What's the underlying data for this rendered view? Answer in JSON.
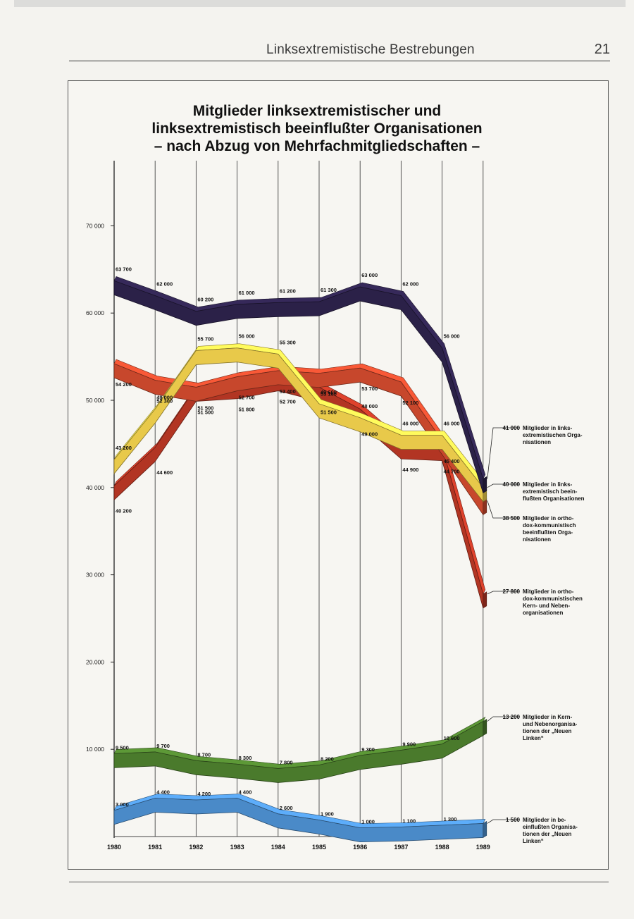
{
  "header": {
    "running_title": "Linksextremistische Bestrebungen",
    "page_number": "21"
  },
  "chart_data": {
    "type": "line",
    "title_lines": [
      "Mitglieder linksextremistischer und",
      "linksextremistisch beeinflußter Organisationen",
      "– nach Abzug von Mehrfachmitgliedschaften –"
    ],
    "x": [
      "1980",
      "1981",
      "1982",
      "1983",
      "1984",
      "1985",
      "1986",
      "1987",
      "1988",
      "1989"
    ],
    "y_ticks": [
      {
        "value": 10000,
        "label": "10 000"
      },
      {
        "value": 20000,
        "label": "20.000"
      },
      {
        "value": 30000,
        "label": "30 000"
      },
      {
        "value": 40000,
        "label": "40 000"
      },
      {
        "value": 50000,
        "label": "50 000"
      },
      {
        "value": 60000,
        "label": "60 000"
      },
      {
        "value": 70000,
        "label": "70 000"
      }
    ],
    "ylim": [
      0,
      75000
    ],
    "series": [
      {
        "name": "Mitglieder in linksextremistischen Organisationen",
        "color": "#2b2148",
        "values": [
          63700,
          62000,
          60200,
          61000,
          61200,
          61300,
          63000,
          62000,
          56000,
          41000
        ],
        "labels": [
          "63 700",
          "62 000",
          "60 200",
          "61 000",
          "61 200",
          "61 300",
          "63 000",
          "62 000",
          "56 000",
          "41 000"
        ],
        "legend_value": "41 000",
        "legend_lines": [
          "Mitglieder in links-",
          "extremistischen Orga-",
          "nisationen"
        ]
      },
      {
        "name": "Mitglieder in linksextremistisch beeinflußten Organisationen",
        "color": "#e8c94a",
        "values": [
          43200,
          49000,
          55700,
          56000,
          55300,
          49600,
          48000,
          46000,
          46000,
          40000
        ],
        "labels": [
          "43 200",
          "49 000",
          "55 700",
          "56 000",
          "55 300",
          "49 600",
          "48 000",
          "46 000",
          "46 000",
          "40 000"
        ],
        "legend_value": "40 000",
        "legend_lines": [
          "Mitglieder in links-",
          "extremistisch beein-",
          "flußten Organisationen"
        ]
      },
      {
        "name": "Mitglieder in orthodox-kommunistisch beeinflußten Organisationen",
        "color": "#c7472c",
        "values": [
          54200,
          52300,
          51500,
          52700,
          53400,
          53100,
          53700,
          52100,
          45400,
          38500
        ],
        "labels": [
          "54 200",
          "52 300",
          "51 500",
          "52 700",
          "53 400",
          "53 100",
          "53 700",
          "52 100",
          "45 400",
          "38 500"
        ],
        "legend_value": "38 500",
        "legend_lines": [
          "Mitglieder in ortho-",
          "dox-kommunistisch",
          "beeinflußten Orga-",
          "nisationen"
        ]
      },
      {
        "name": "Mitglieder in orthodox-kommunistischen Kern- und Nebenorganisationen",
        "color": "#b23523",
        "values": [
          40200,
          44600,
          51500,
          51800,
          52700,
          51500,
          49000,
          44900,
          44700,
          27800
        ],
        "labels": [
          "40 200",
          "44 600",
          "51 500",
          "51 800",
          "52 700",
          "51 500",
          "49 000",
          "44 900",
          "44 700",
          "27 800"
        ],
        "legend_value": "27 800",
        "legend_lines": [
          "Mitglieder in ortho-",
          "dox-kommunistischen",
          "Kern- und Neben-",
          "organisationen"
        ]
      },
      {
        "name": "Mitglieder in Kern- und Nebenorganisationen der „Neuen Linken“",
        "color": "#4a7a2c",
        "values": [
          9500,
          9700,
          8700,
          8300,
          7800,
          8200,
          9300,
          9900,
          10600,
          13200
        ],
        "labels": [
          "9 500",
          "9 700",
          "8 700",
          "8 300",
          "7 800",
          "8 200",
          "9 300",
          "9 900",
          "10 600",
          "13 200"
        ],
        "legend_value": "13 200",
        "legend_lines": [
          "Mitglieder in Kern-",
          "und Nebenorganisa-",
          "tionen der „Neuen",
          "Linken“"
        ]
      },
      {
        "name": "Mitglieder in beeinflußten Organisationen der „Neuen Linken“",
        "color": "#4a8ac8",
        "values": [
          3000,
          4400,
          4200,
          4400,
          2600,
          1900,
          1000,
          1100,
          1300,
          1500
        ],
        "labels": [
          "3 000",
          "4 400",
          "4 200",
          "4 400",
          "2 600",
          "1 900",
          "1 000",
          "1 100",
          "1 300",
          "1 500"
        ],
        "legend_value": "1 500",
        "legend_lines": [
          "Mitglieder in be-",
          "einflußten Organisa-",
          "tionen der „Neuen",
          "Linken“"
        ]
      }
    ]
  }
}
